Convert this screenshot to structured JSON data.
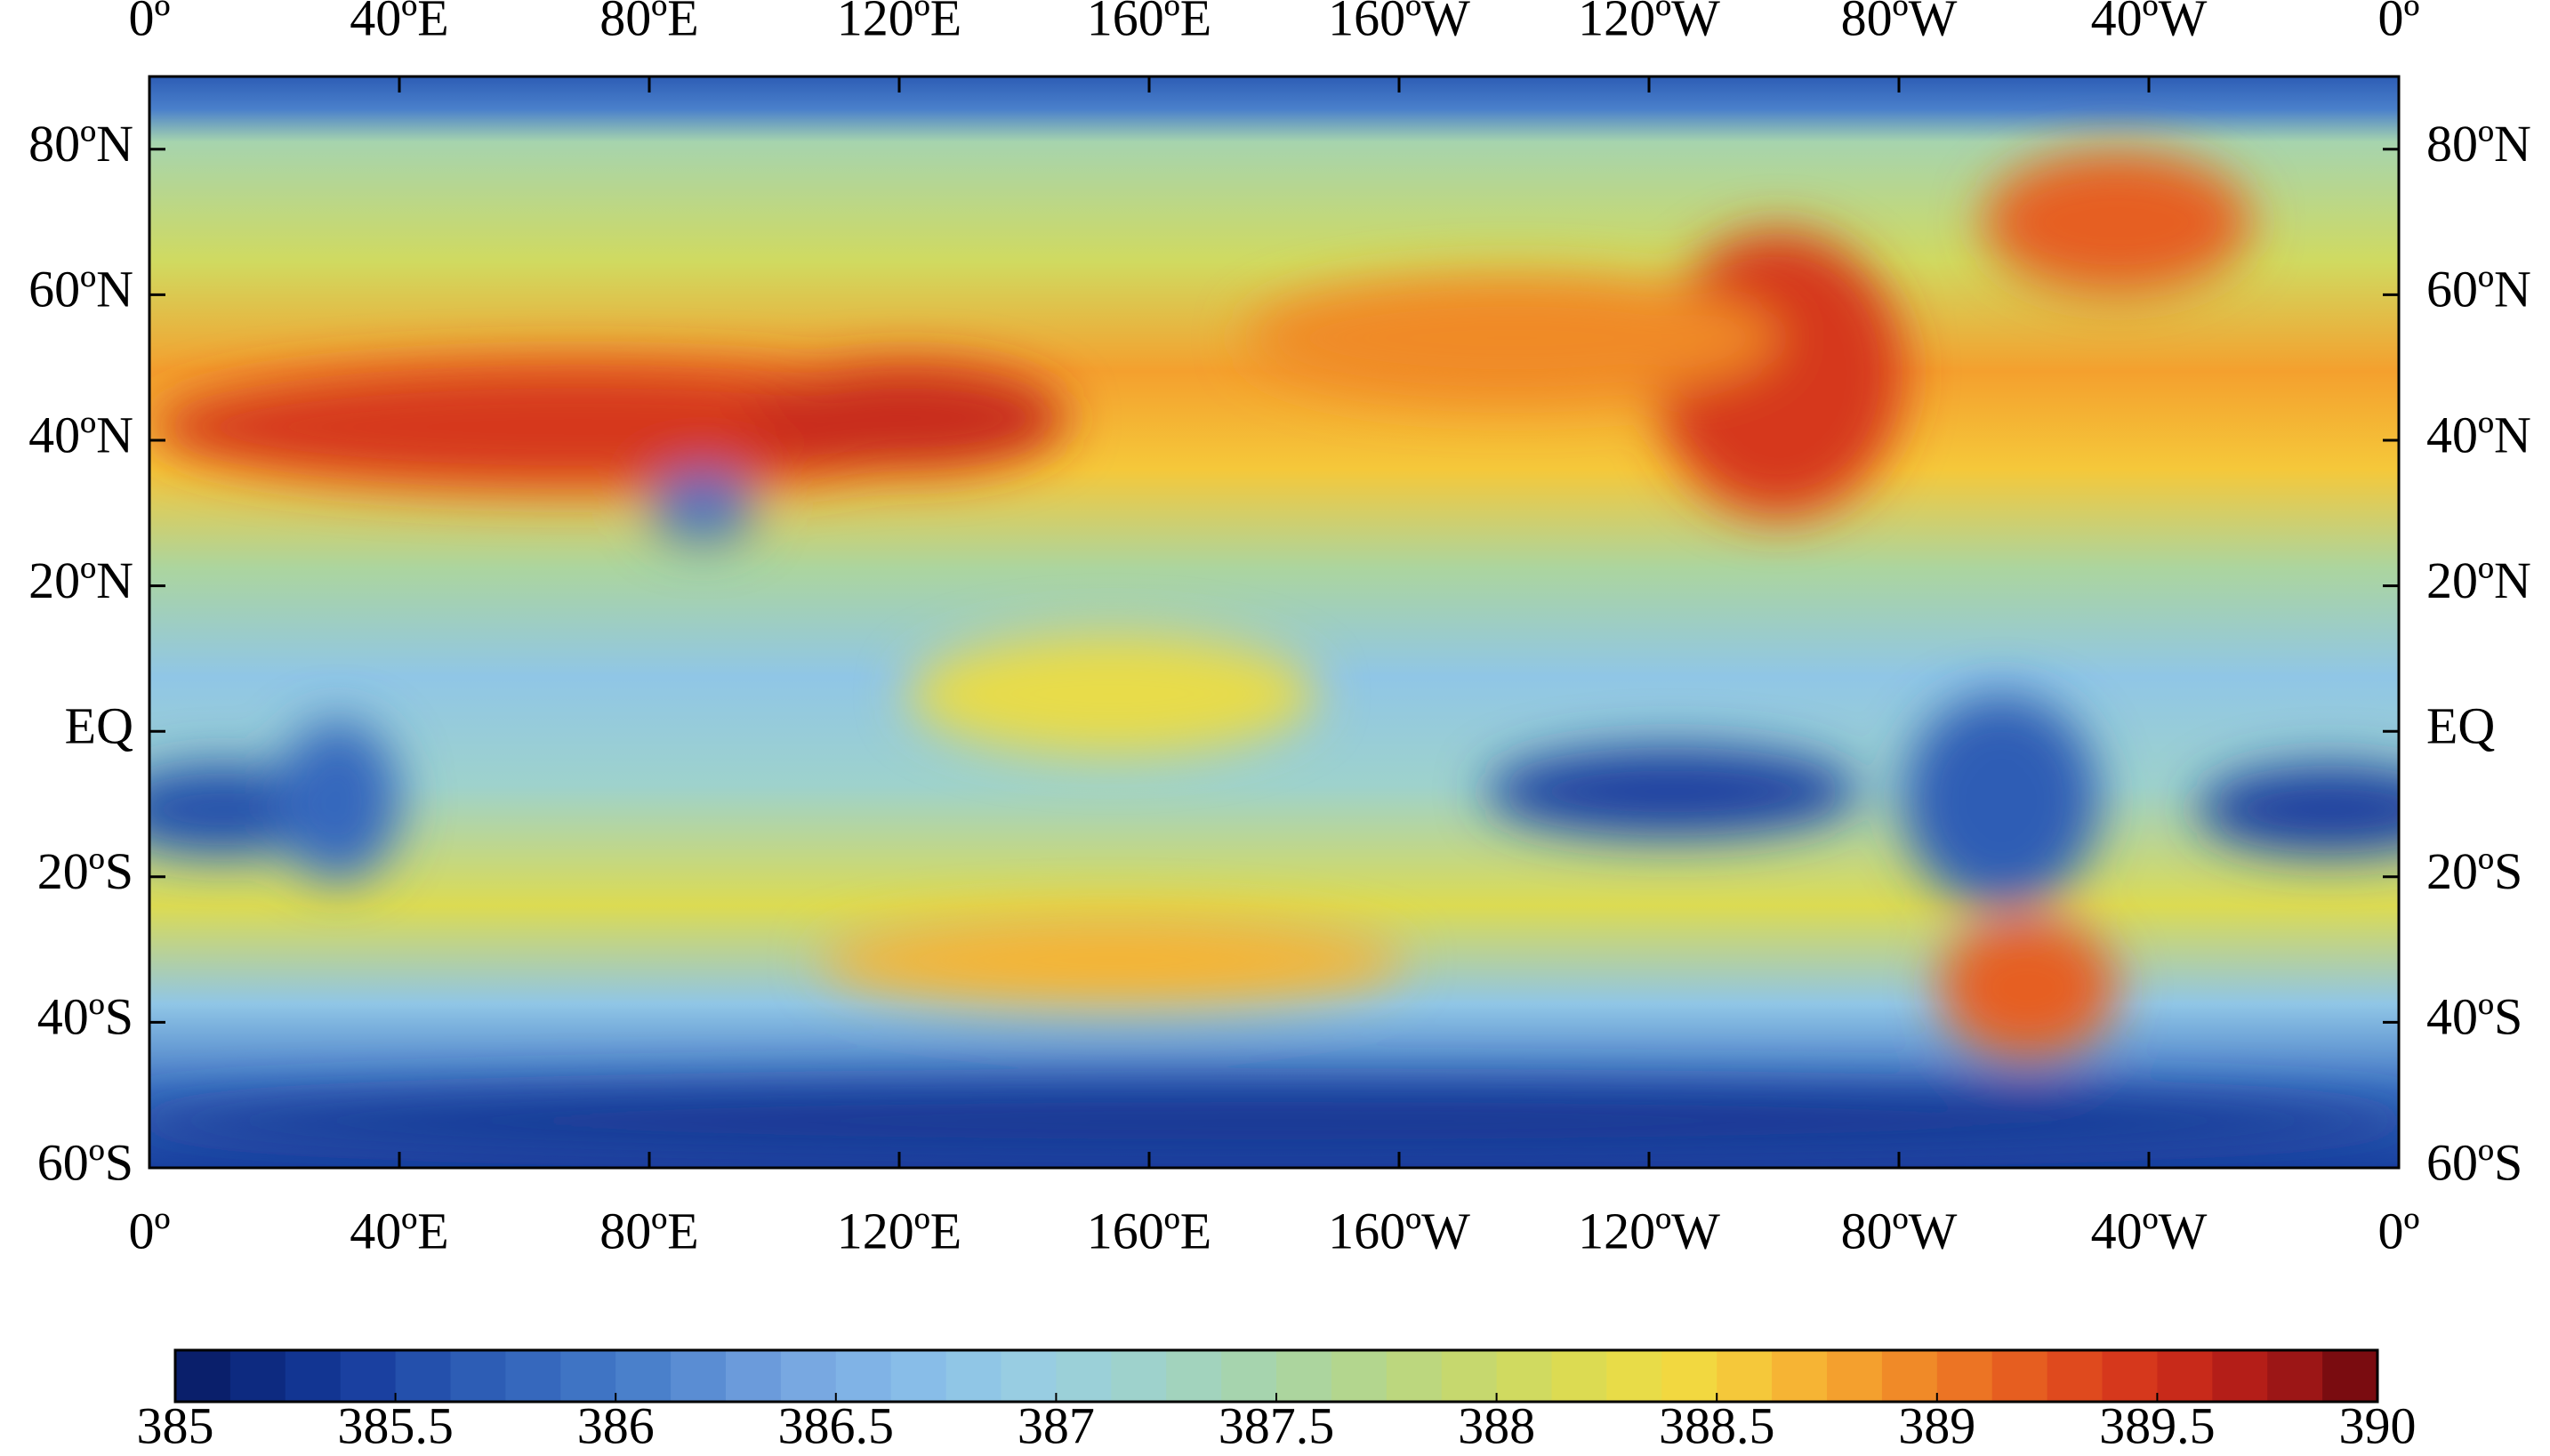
{
  "map": {
    "lon_range": [
      0,
      360
    ],
    "lat_range": [
      -60,
      90
    ],
    "lon_ticks": [
      {
        "value": 0,
        "label": "0º"
      },
      {
        "value": 40,
        "label": "40ºE"
      },
      {
        "value": 80,
        "label": "80ºE"
      },
      {
        "value": 120,
        "label": "120ºE"
      },
      {
        "value": 160,
        "label": "160ºE"
      },
      {
        "value": 200,
        "label": "160ºW"
      },
      {
        "value": 240,
        "label": "120ºW"
      },
      {
        "value": 280,
        "label": "80ºW"
      },
      {
        "value": 320,
        "label": "40ºW"
      },
      {
        "value": 360,
        "label": "0º"
      }
    ],
    "lat_ticks": [
      {
        "value": 80,
        "label": "80ºN"
      },
      {
        "value": 60,
        "label": "60ºN"
      },
      {
        "value": 40,
        "label": "40ºN"
      },
      {
        "value": 20,
        "label": "20ºN"
      },
      {
        "value": 0,
        "label": "EQ"
      },
      {
        "value": -20,
        "label": "20ºS"
      },
      {
        "value": -40,
        "label": "40ºS"
      },
      {
        "value": -60,
        "label": "60ºS"
      }
    ],
    "colorbar": {
      "range": [
        385,
        390
      ],
      "ticks": [
        385,
        385.5,
        386,
        386.5,
        387,
        387.5,
        388,
        388.5,
        389,
        389.5,
        390
      ],
      "colors": [
        "#0a1f6b",
        "#0d2a80",
        "#123592",
        "#1a40a0",
        "#2450ac",
        "#2d5db5",
        "#3668bd",
        "#3f74c4",
        "#4a80cb",
        "#5a8dd3",
        "#6b9bdb",
        "#78a8e1",
        "#80b3e6",
        "#88bde8",
        "#90c6e6",
        "#98cde2",
        "#9bd0d8",
        "#9ed2cc",
        "#a2d3bd",
        "#a6d4ae",
        "#acd59e",
        "#b3d68e",
        "#bcd77e",
        "#c6d86e",
        "#d0da60",
        "#dcdb52",
        "#e8dc48",
        "#f2d840",
        "#f5c83a",
        "#f6b434",
        "#f4a02e",
        "#f08a28",
        "#ec7424",
        "#e65e20",
        "#df4a1e",
        "#d6381c",
        "#c82a1a",
        "#b41e18",
        "#9c1616",
        "#7a0c10"
      ]
    }
  }
}
